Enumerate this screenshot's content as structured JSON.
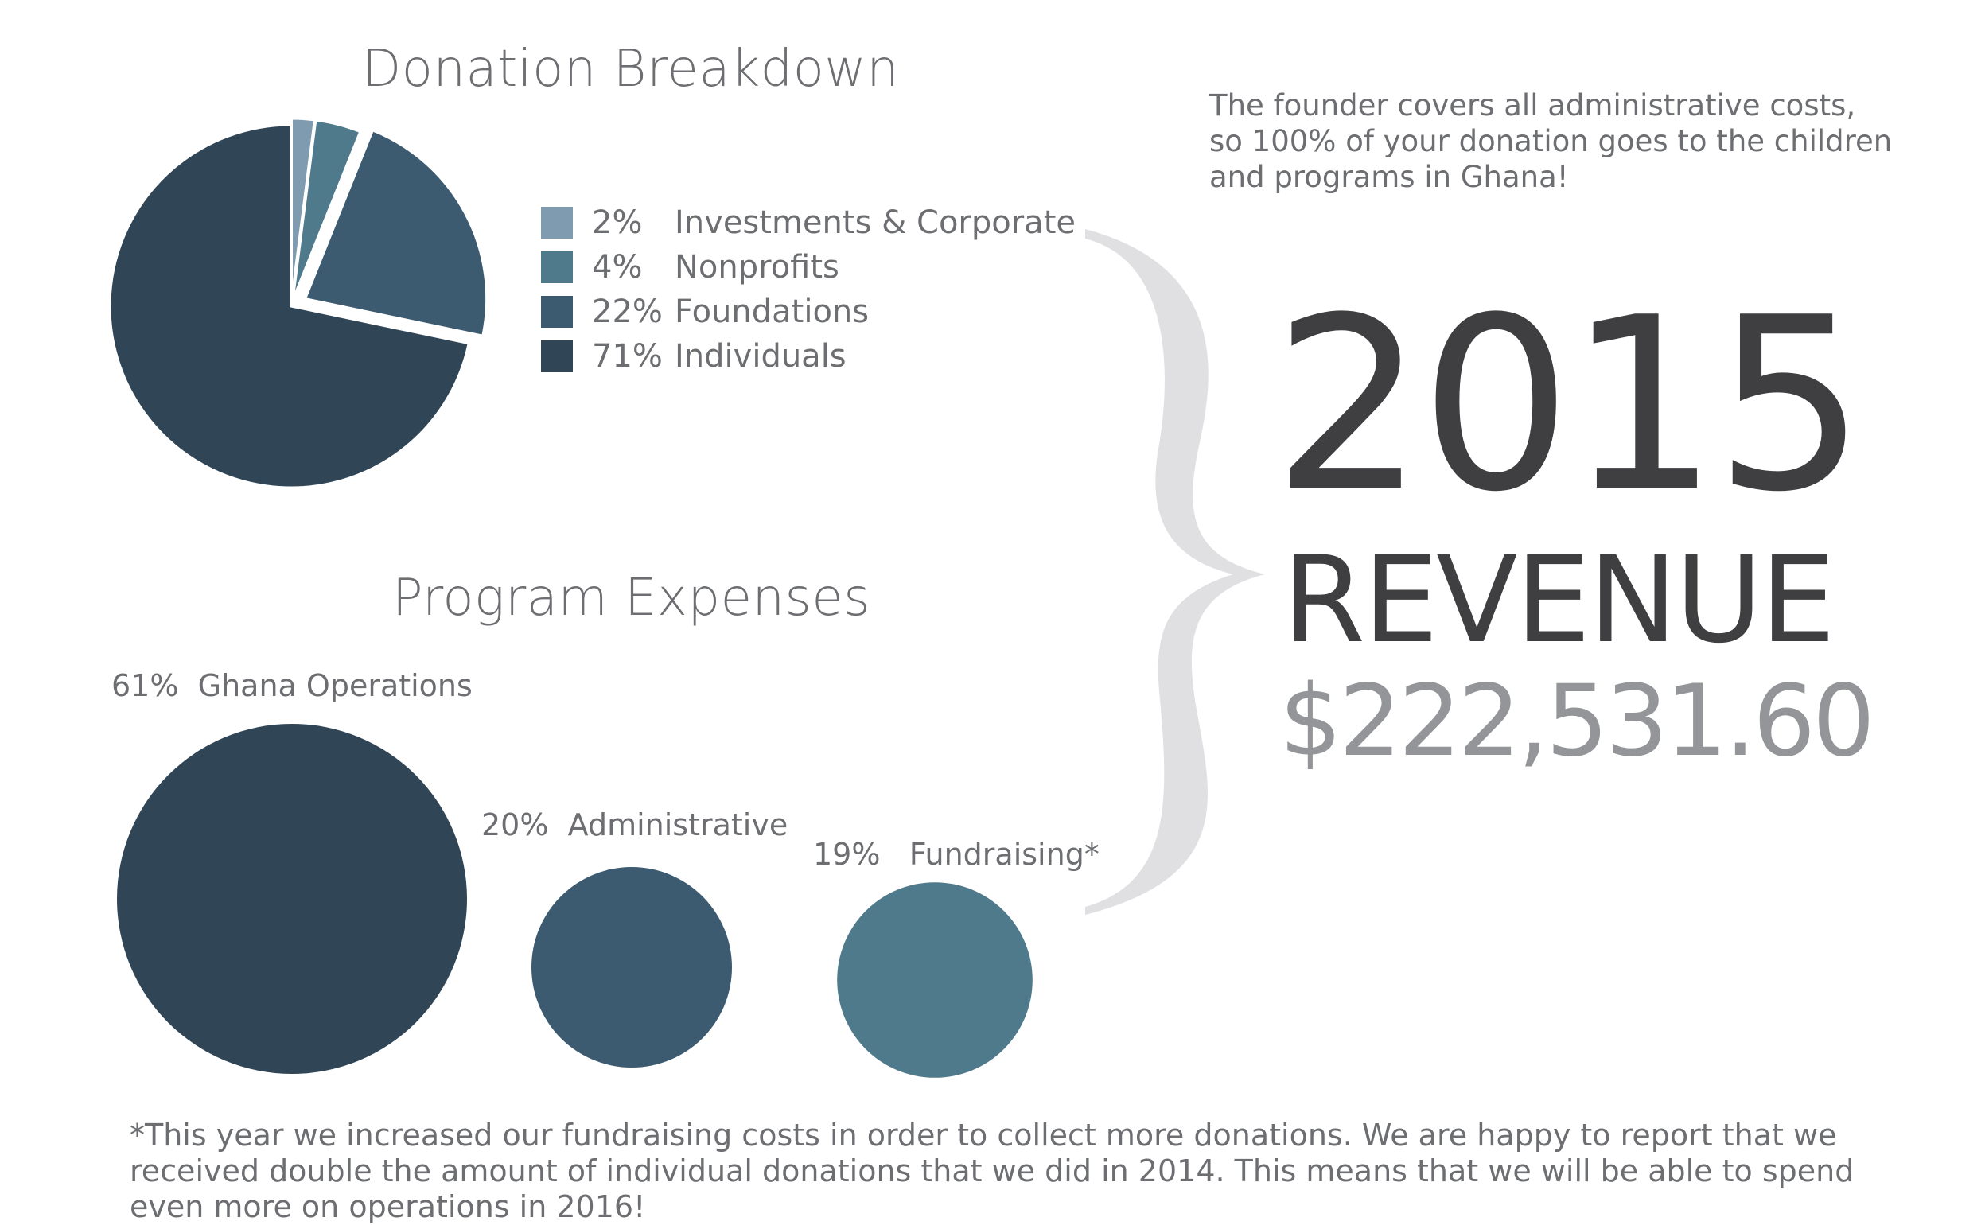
{
  "chart_data": [
    {
      "type": "pie",
      "title": "Donation Breakdown",
      "slices": [
        {
          "label": "Investments & Corporate",
          "value": 2,
          "display": "2%",
          "color": "#7f9bb0"
        },
        {
          "label": "Nonprofits",
          "value": 4,
          "display": "4%",
          "color": "#4e7a8c"
        },
        {
          "label": "Foundations",
          "value": 22,
          "display": "22%",
          "color": "#3c5a70"
        },
        {
          "label": "Individuals",
          "value": 71,
          "display": "71%",
          "color": "#304556"
        }
      ],
      "legend": "right"
    },
    {
      "type": "bubble",
      "title": "Program Expenses",
      "items": [
        {
          "label": "Ghana Operations",
          "value": 61,
          "display": "61%",
          "color": "#304556"
        },
        {
          "label": "Administrative",
          "value": 20,
          "display": "20%",
          "color": "#3c5a70"
        },
        {
          "label": "Fundraising*",
          "value": 19,
          "display": "19%",
          "color": "#4e7a8c"
        }
      ]
    }
  ],
  "note": "The founder covers all administrative costs, so 100% of your donation goes to the children and programs in Ghana!",
  "headline": {
    "year": "2015",
    "label": "REVENUE",
    "amount": "$222,531.60"
  },
  "footnote": "*This year we increased our fundraising costs in order to collect more donations. We are happy to report that we received double the amount of individual donations that we did in 2014. This means that we will be able to spend even more on operations in 2016!",
  "colors": {
    "brace": "#e0e0e2",
    "text": "#6d6e71",
    "headline": "#3f3f41",
    "amount": "#939598"
  }
}
